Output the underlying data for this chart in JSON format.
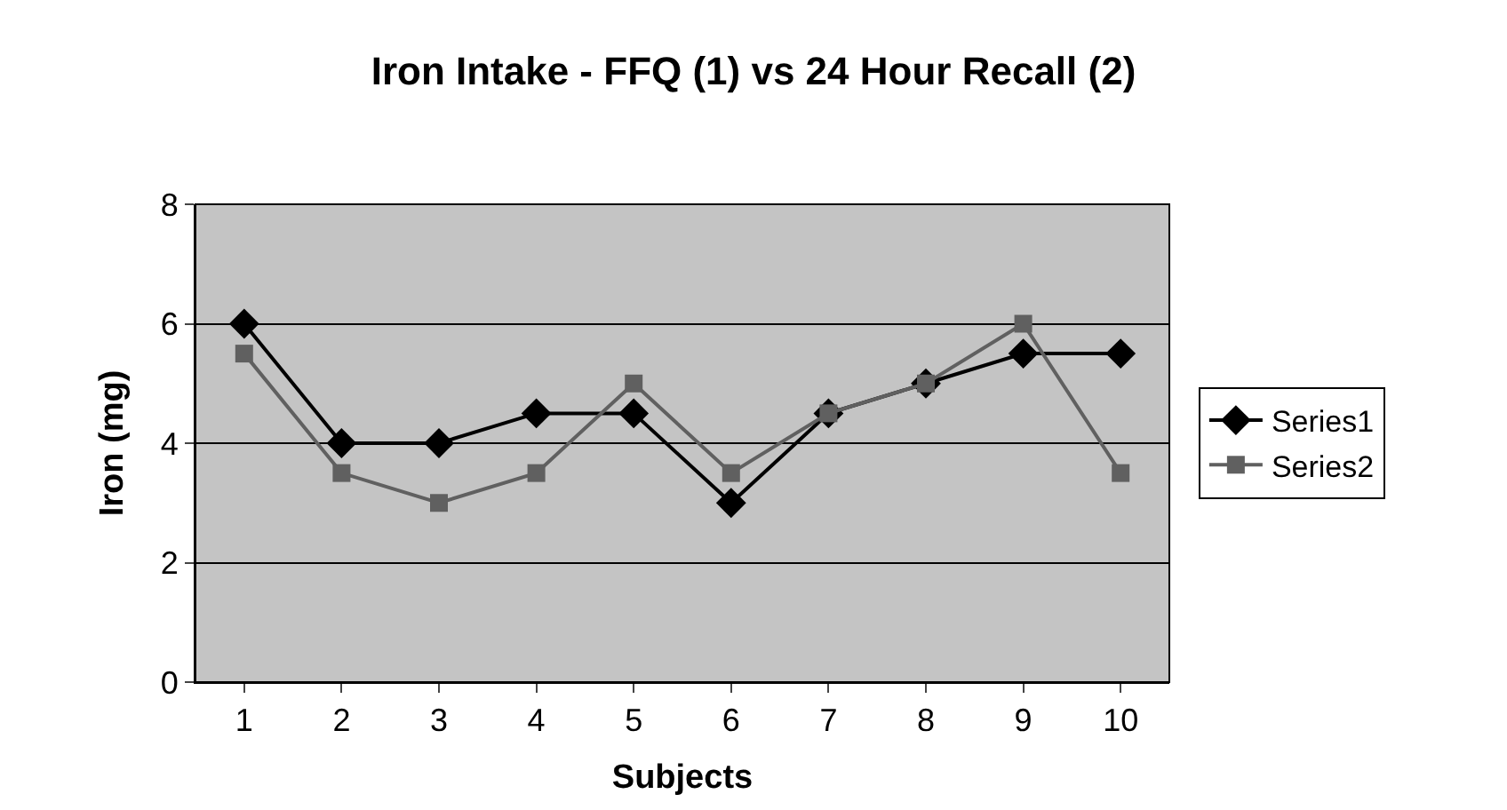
{
  "chart_data": {
    "type": "line",
    "title": "Iron Intake - FFQ (1) vs 24 Hour Recall (2)",
    "xlabel": "Subjects",
    "ylabel": "Iron (mg)",
    "categories": [
      "1",
      "2",
      "3",
      "4",
      "5",
      "6",
      "7",
      "8",
      "9",
      "10"
    ],
    "series": [
      {
        "name": "Series1",
        "color": "#000000",
        "marker": "diamond",
        "values": [
          6,
          4,
          4,
          4.5,
          4.5,
          3,
          4.5,
          5,
          5.5,
          5.5
        ]
      },
      {
        "name": "Series2",
        "color": "#606060",
        "marker": "square",
        "values": [
          5.5,
          3.5,
          3,
          3.5,
          5,
          3.5,
          4.5,
          5,
          6,
          3.5
        ]
      }
    ],
    "ylim": [
      0,
      8
    ],
    "yticks": [
      0,
      2,
      4,
      6,
      8
    ],
    "grid": "y",
    "legend": "right",
    "line_style": "solid"
  }
}
